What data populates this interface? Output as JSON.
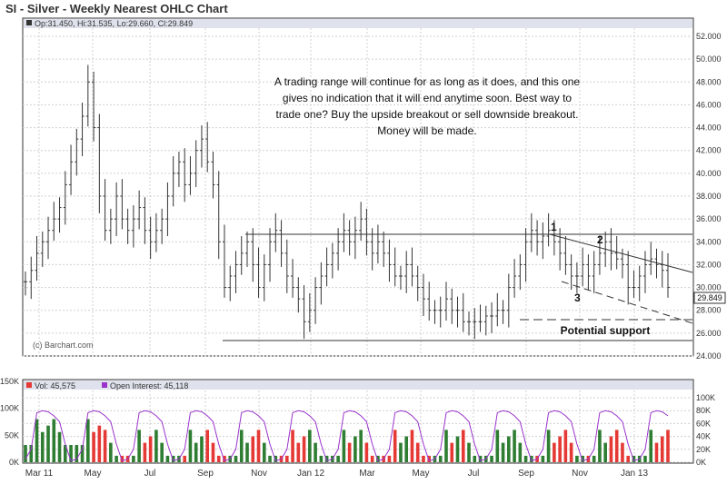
{
  "header": {
    "title": "SI - Silver - Weekly Nearest OHLC Chart",
    "ohlc_readout": "Op:31.450, Hi:31.535, Lo:29.660, Cl:29.849",
    "watermark": "(c) Barchart.com"
  },
  "annotation": {
    "lines": [
      "A trading range will continue for as long as it does, and this one",
      "gives no indication that it will end anytime soon.  Best way to",
      "trade one?  Buy the upside breakout or sell downside breakout.",
      "Money will be made."
    ],
    "potential_support": "Potential support",
    "points": [
      "1",
      "2",
      "3"
    ]
  },
  "colors": {
    "up_volume": "#2e7d32",
    "down_volume": "#e53935",
    "open_interest": "#9933cc",
    "header_band": "#dfe2ec",
    "price_bar": "#333333"
  },
  "chart_data": [
    {
      "type": "ohlc",
      "title": "SI - Silver - Weekly Nearest OHLC Chart",
      "y_axis_side": "right",
      "ylim": [
        24,
        52
      ],
      "y_ticks": [
        "52.000",
        "50.000",
        "48.000",
        "46.000",
        "44.000",
        "42.000",
        "40.000",
        "38.000",
        "36.000",
        "34.000",
        "32.000",
        "30.000",
        "28.000",
        "26.000",
        "24.000"
      ],
      "last_price_label": "29.849",
      "x_ticks": [
        "Mar 11",
        "May",
        "Jul",
        "Sep",
        "Nov",
        "Jan 12",
        "Mar",
        "May",
        "Jul",
        "Sep",
        "Nov",
        "Jan 13"
      ],
      "closes": [
        30.5,
        31.5,
        33,
        34,
        35,
        36,
        37,
        39,
        41,
        43,
        45,
        48,
        44,
        38,
        35,
        36,
        38,
        36,
        35,
        36,
        37,
        35,
        34,
        35,
        36,
        38,
        40,
        41,
        39,
        40,
        42,
        43,
        41,
        39,
        34,
        30,
        31,
        32,
        33,
        34,
        32,
        30,
        32,
        34,
        35,
        33,
        31,
        30,
        29,
        27,
        28,
        30,
        31,
        32,
        33,
        34,
        35,
        34,
        35,
        36,
        34,
        33,
        34,
        33,
        32,
        31,
        31,
        32,
        31,
        30,
        29,
        28,
        28,
        28,
        29,
        28,
        28,
        27,
        27,
        27,
        27,
        27.5,
        27.5,
        28,
        28,
        30,
        31,
        32,
        34,
        35,
        34,
        34.5,
        35,
        34,
        33,
        32,
        31,
        31,
        32,
        31,
        32,
        33,
        34,
        33,
        32.5,
        32,
        30,
        30,
        31,
        32,
        32.5,
        32,
        31.5,
        30
      ]
    },
    {
      "type": "bar",
      "legend": [
        "Vol: 45,575",
        "Open Interest: 45,118"
      ],
      "y_ticks_left": [
        "150K",
        "100K",
        "50K",
        "0K"
      ],
      "y_ticks_right": [
        "100K",
        "80K",
        "60K",
        "40K",
        "20K",
        "0K"
      ],
      "ylim_left": [
        0,
        150000
      ],
      "ylim_right": [
        0,
        100000
      ]
    }
  ]
}
